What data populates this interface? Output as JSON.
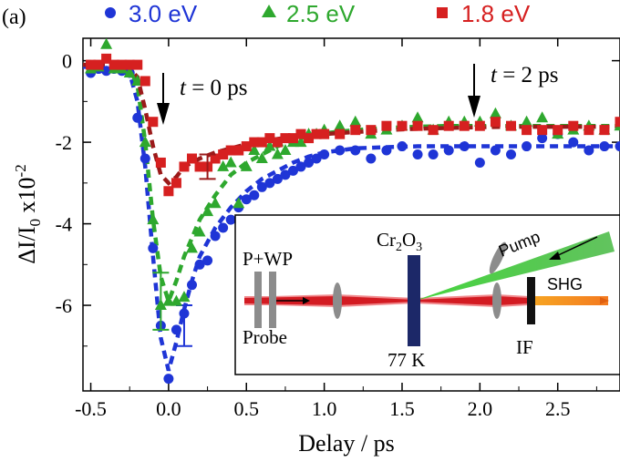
{
  "panel_label": "(a)",
  "colors": {
    "blue": "#1f35d6",
    "green": "#2ea82e",
    "red": "#d62020",
    "darkred": "#9b1a1a"
  },
  "annotations": {
    "t0_italic": "t",
    "t0_rest": " = 0 ps",
    "t2_italic": "t",
    "t2_rest": " = 2 ps"
  },
  "inset": {
    "pwp": "P+WP",
    "probe": "Probe",
    "crystal_main": "Cr",
    "crystal_sub1": "2",
    "crystal_mid": "O",
    "crystal_sub2": "3",
    "temp": "77 K",
    "pump": "Pump",
    "shg": "SHG",
    "if": "IF"
  },
  "chart_data": {
    "type": "scatter",
    "xlabel": "Delay / ps",
    "ylabel_main": "ΔI/I",
    "ylabel_sub": "0",
    "ylabel_factor": " x10",
    "ylabel_exp": "-2",
    "xlim": [
      -0.55,
      2.9
    ],
    "ylim": [
      -8.1,
      0.55
    ],
    "xticks": [
      -0.5,
      0.0,
      0.5,
      1.0,
      1.5,
      2.0,
      2.5
    ],
    "xtick_labels": [
      "-0.5",
      "0.0",
      "0.5",
      "1.0",
      "1.5",
      "2.0",
      "2.5"
    ],
    "yticks": [
      0,
      -2,
      -4,
      -6
    ],
    "ytick_labels": [
      "0",
      "-2",
      "-4",
      "-6"
    ],
    "legend_position": "top",
    "series": [
      {
        "name": "3.0 eV",
        "marker": "circle",
        "color": "#1f35d6",
        "x": [
          -0.5,
          -0.45,
          -0.4,
          -0.35,
          -0.3,
          -0.25,
          -0.2,
          -0.15,
          -0.1,
          -0.05,
          0.0,
          0.05,
          0.1,
          0.15,
          0.2,
          0.25,
          0.3,
          0.35,
          0.4,
          0.45,
          0.5,
          0.55,
          0.6,
          0.65,
          0.7,
          0.75,
          0.8,
          0.85,
          0.9,
          0.95,
          1.0,
          1.1,
          1.2,
          1.3,
          1.4,
          1.5,
          1.6,
          1.7,
          1.8,
          1.9,
          2.0,
          2.1,
          2.2,
          2.3,
          2.4,
          2.5,
          2.6,
          2.7,
          2.8,
          2.9
        ],
        "y": [
          -0.3,
          -0.2,
          -0.25,
          -0.2,
          -0.25,
          -0.3,
          -1.4,
          -2.4,
          -4.6,
          -6.5,
          -7.8,
          -6.6,
          -6.2,
          -5.5,
          -5.0,
          -4.9,
          -4.3,
          -4.1,
          -3.9,
          -3.6,
          -3.4,
          -3.3,
          -3.1,
          -3.0,
          -2.9,
          -2.8,
          -2.7,
          -2.6,
          -2.5,
          -2.4,
          -2.3,
          -2.2,
          -2.2,
          -2.4,
          -2.2,
          -2.1,
          -2.3,
          -2.3,
          -2.2,
          -2.1,
          -2.5,
          -2.2,
          -2.3,
          -2.1,
          -1.9,
          -1.8,
          -2.0,
          -2.2,
          -2.1,
          -2.1
        ],
        "fit_x": [
          -0.55,
          -0.45,
          -0.35,
          -0.25,
          -0.2,
          -0.15,
          -0.1,
          -0.05,
          0.0,
          0.05,
          0.1,
          0.15,
          0.2,
          0.3,
          0.4,
          0.5,
          0.6,
          0.7,
          0.8,
          0.9,
          1.0,
          1.2,
          1.4,
          1.6,
          1.8,
          2.0,
          2.2,
          2.4,
          2.6,
          2.8,
          2.9
        ],
        "fit_y": [
          -0.15,
          -0.15,
          -0.15,
          -0.3,
          -1.0,
          -2.6,
          -4.8,
          -6.8,
          -7.6,
          -6.9,
          -6.1,
          -5.4,
          -4.8,
          -4.1,
          -3.6,
          -3.2,
          -2.9,
          -2.7,
          -2.5,
          -2.35,
          -2.25,
          -2.15,
          -2.12,
          -2.1,
          -2.1,
          -2.1,
          -2.1,
          -2.1,
          -2.1,
          -2.1,
          -2.1
        ],
        "error_bar": {
          "x": 0.1,
          "y": -6.5,
          "err": 0.5
        }
      },
      {
        "name": "2.5 eV",
        "marker": "triangle",
        "color": "#2ea82e",
        "x": [
          -0.5,
          -0.45,
          -0.4,
          -0.35,
          -0.3,
          -0.25,
          -0.2,
          -0.15,
          -0.1,
          -0.05,
          0.0,
          0.05,
          0.1,
          0.15,
          0.2,
          0.25,
          0.3,
          0.35,
          0.4,
          0.45,
          0.5,
          0.55,
          0.6,
          0.65,
          0.7,
          0.75,
          0.8,
          0.85,
          0.9,
          0.95,
          1.0,
          1.1,
          1.2,
          1.3,
          1.4,
          1.5,
          1.6,
          1.7,
          1.8,
          1.9,
          2.0,
          2.1,
          2.2,
          2.3,
          2.4,
          2.5,
          2.6,
          2.7,
          2.8,
          2.9
        ],
        "y": [
          -0.2,
          -0.15,
          0.4,
          -0.2,
          -0.2,
          -0.3,
          -0.5,
          -2.0,
          -3.9,
          -6.0,
          -5.9,
          -5.9,
          -5.8,
          -4.6,
          -4.2,
          -3.7,
          -3.5,
          -2.6,
          -2.5,
          -3.5,
          -2.6,
          -2.2,
          -2.4,
          -2.1,
          -2.3,
          -2.2,
          -2.0,
          -2.0,
          -1.8,
          -1.8,
          -1.7,
          -1.6,
          -1.5,
          -1.8,
          -1.7,
          -1.6,
          -1.4,
          -1.7,
          -1.5,
          -1.5,
          -1.5,
          -1.3,
          -1.6,
          -1.5,
          -1.4,
          -1.8,
          -1.7,
          -1.6,
          -1.7,
          -1.6
        ],
        "fit_x": [
          -0.55,
          -0.45,
          -0.35,
          -0.25,
          -0.2,
          -0.15,
          -0.1,
          -0.05,
          0.0,
          0.05,
          0.1,
          0.2,
          0.3,
          0.4,
          0.5,
          0.6,
          0.7,
          0.8,
          0.9,
          1.0,
          1.2,
          1.4,
          1.6,
          1.8,
          2.0,
          2.2,
          2.4,
          2.6,
          2.8,
          2.9
        ],
        "fit_y": [
          -0.1,
          -0.1,
          -0.1,
          -0.2,
          -0.6,
          -2.0,
          -3.9,
          -5.3,
          -5.9,
          -5.4,
          -4.8,
          -3.9,
          -3.3,
          -2.8,
          -2.5,
          -2.3,
          -2.1,
          -1.95,
          -1.85,
          -1.78,
          -1.7,
          -1.65,
          -1.62,
          -1.6,
          -1.6,
          -1.6,
          -1.6,
          -1.6,
          -1.6,
          -1.6
        ],
        "error_bar": {
          "x": -0.05,
          "y": -5.9,
          "err": 0.7
        }
      },
      {
        "name": "1.8 eV",
        "marker": "square",
        "color": "#d62020",
        "x": [
          -0.5,
          -0.45,
          -0.4,
          -0.35,
          -0.3,
          -0.25,
          -0.2,
          -0.15,
          -0.1,
          -0.05,
          0.0,
          0.05,
          0.1,
          0.15,
          0.2,
          0.25,
          0.3,
          0.35,
          0.4,
          0.45,
          0.5,
          0.55,
          0.6,
          0.65,
          0.7,
          0.75,
          0.8,
          0.85,
          0.9,
          0.95,
          1.0,
          1.1,
          1.2,
          1.3,
          1.4,
          1.5,
          1.6,
          1.7,
          1.8,
          1.9,
          2.0,
          2.1,
          2.2,
          2.3,
          2.4,
          2.5,
          2.6,
          2.7,
          2.8,
          2.9
        ],
        "y": [
          -0.1,
          -0.1,
          0.05,
          -0.1,
          -0.1,
          -0.1,
          -0.1,
          -0.5,
          -1.5,
          -2.5,
          -3.2,
          -3.0,
          -2.6,
          -2.4,
          -2.6,
          -2.6,
          -2.4,
          -2.3,
          -2.2,
          -2.2,
          -2.1,
          -2.0,
          -2.0,
          -1.9,
          -2.0,
          -1.9,
          -1.9,
          -1.8,
          -1.9,
          -1.8,
          -1.8,
          -1.8,
          -1.7,
          -1.7,
          -1.6,
          -1.6,
          -1.6,
          -1.7,
          -1.6,
          -1.6,
          -1.6,
          -1.5,
          -1.6,
          -1.7,
          -1.7,
          -1.7,
          -1.6,
          -1.7,
          -1.7,
          -1.5
        ],
        "fit_x": [
          -0.55,
          -0.45,
          -0.35,
          -0.25,
          -0.2,
          -0.15,
          -0.1,
          -0.05,
          0.0,
          0.05,
          0.1,
          0.2,
          0.3,
          0.4,
          0.5,
          0.6,
          0.7,
          0.8,
          0.9,
          1.0,
          1.2,
          1.4,
          1.6,
          1.8,
          2.0,
          2.2,
          2.4,
          2.6,
          2.8,
          2.9
        ],
        "fit_y": [
          -0.1,
          -0.1,
          -0.1,
          -0.2,
          -0.4,
          -1.2,
          -2.1,
          -2.8,
          -3.0,
          -2.85,
          -2.6,
          -2.4,
          -2.25,
          -2.15,
          -2.05,
          -1.98,
          -1.92,
          -1.87,
          -1.83,
          -1.8,
          -1.75,
          -1.7,
          -1.67,
          -1.65,
          -1.63,
          -1.62,
          -1.62,
          -1.62,
          -1.62,
          -1.62
        ],
        "fit_color": "#9b1a1a",
        "error_bar": {
          "x": 0.25,
          "y": -2.6,
          "err": 0.3
        }
      }
    ]
  }
}
